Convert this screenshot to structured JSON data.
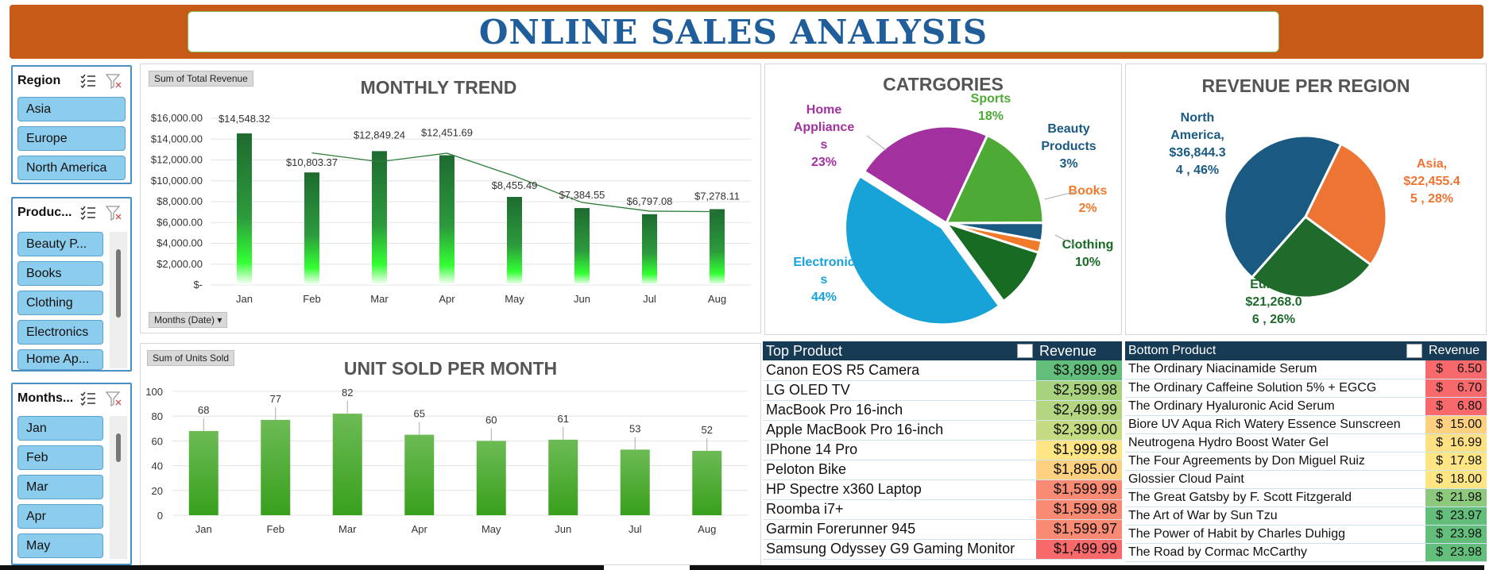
{
  "title": "ONLINE SALES ANALYSIS",
  "colors": {
    "banner": "#c65a16",
    "title_text": "#1f5d9b",
    "slicer_item": "#8cccec",
    "table_header": "#173a55"
  },
  "slicers": {
    "region": {
      "title": "Region",
      "items": [
        "Asia",
        "Europe",
        "North America"
      ]
    },
    "product": {
      "title": "Produc...",
      "items": [
        "Beauty P...",
        "Books",
        "Clothing",
        "Electronics",
        "Home Ap..."
      ]
    },
    "months": {
      "title": "Months...",
      "items": [
        "Jan",
        "Feb",
        "Mar",
        "Apr",
        "May"
      ]
    },
    "icons": {
      "multiselect": "multi-select-icon",
      "clear_filter": "clear-filter-icon"
    }
  },
  "chart_data": [
    {
      "type": "bar",
      "title": "MONTHLY TREND",
      "field_button": "Sum of Total Revenue",
      "axis_field_button": "Months (Date)",
      "categories": [
        "Jan",
        "Feb",
        "Mar",
        "Apr",
        "May",
        "Jun",
        "Jul",
        "Aug"
      ],
      "values": [
        14548.32,
        10803.37,
        12849.24,
        12451.69,
        8455.49,
        7384.55,
        6797.08,
        7278.11
      ],
      "data_labels": [
        "$14,548.32",
        "$10,803.37",
        "$12,849.24",
        "$12,451.69",
        "$8,455.49",
        "$7,384.55",
        "$6,797.08",
        "$7,278.11"
      ],
      "ylim": [
        0,
        16000
      ],
      "y_ticks": [
        "$-",
        "$2,000.00",
        "$4,000.00",
        "$6,000.00",
        "$8,000.00",
        "$10,000.00",
        "$12,000.00",
        "$14,000.00",
        "$16,000.00"
      ],
      "trendline": "moving average",
      "grid": true,
      "bar_color": "#1e6b30",
      "bar_fade_color": "#33ff33"
    },
    {
      "type": "bar",
      "title": "UNIT SOLD PER MONTH",
      "field_button": "Sum of Units Sold",
      "categories": [
        "Jan",
        "Feb",
        "Mar",
        "Apr",
        "May",
        "Jun",
        "Jul",
        "Aug"
      ],
      "values": [
        68,
        77,
        82,
        65,
        60,
        61,
        53,
        52
      ],
      "ylim": [
        0,
        100
      ],
      "y_ticks": [
        "0",
        "20",
        "40",
        "60",
        "80",
        "100"
      ],
      "grid": true,
      "bar_color": "#4aaa3a"
    },
    {
      "type": "pie",
      "title": "CATRGORIES",
      "slices": [
        {
          "name": "Electronics",
          "label_lines": [
            "Electronic",
            "s"
          ],
          "pct_label": "44%",
          "value": 44,
          "color": "#17a2d8",
          "exploded": true
        },
        {
          "name": "Home Appliances",
          "label_lines": [
            "Home",
            "Appliance",
            "s"
          ],
          "pct_label": "23%",
          "value": 23,
          "color": "#a2309f"
        },
        {
          "name": "Sports",
          "label_lines": [
            "Sports"
          ],
          "pct_label": "18%",
          "value": 18,
          "color": "#4daa35"
        },
        {
          "name": "Beauty Products",
          "label_lines": [
            "Beauty",
            "Products"
          ],
          "pct_label": "3%",
          "value": 3,
          "color": "#1a5a82"
        },
        {
          "name": "Books",
          "label_lines": [
            "Books"
          ],
          "pct_label": "2%",
          "value": 2,
          "color": "#f0792a"
        },
        {
          "name": "Clothing",
          "label_lines": [
            "Clothing"
          ],
          "pct_label": "10%",
          "value": 10,
          "color": "#186b22"
        }
      ]
    },
    {
      "type": "pie",
      "title": "REVENUE PER REGION",
      "slices": [
        {
          "name": "North America",
          "label_lines": [
            "North",
            "America,",
            "$36,844.3",
            "4 , 46%"
          ],
          "value": 36844.34,
          "color": "#1a5a82"
        },
        {
          "name": "Asia",
          "label_lines": [
            "Asia,",
            "$22,455.4",
            "5 , 28%"
          ],
          "value": 22455.45,
          "color": "#ed7433"
        },
        {
          "name": "Europe",
          "label_lines": [
            "Europe,",
            "$21,268.0",
            "6 , 26%"
          ],
          "value": 21268.06,
          "color": "#1e6b2b"
        }
      ]
    }
  ],
  "top_products": {
    "header_product": "Top Product",
    "header_revenue": "Revenue",
    "rows": [
      {
        "product": "Canon EOS R5 Camera",
        "revenue": "$3,899.99",
        "color": "#63be7b"
      },
      {
        "product": "LG OLED TV",
        "revenue": "$2,599.98",
        "color": "#a9d27f"
      },
      {
        "product": "MacBook Pro 16-inch",
        "revenue": "$2,499.99",
        "color": "#b5d680"
      },
      {
        "product": "Apple MacBook Pro 16-inch",
        "revenue": "$2,399.00",
        "color": "#c4db81"
      },
      {
        "product": "IPhone 14 Pro",
        "revenue": "$1,999.98",
        "color": "#ffe583"
      },
      {
        "product": "Peloton Bike",
        "revenue": "$1,895.00",
        "color": "#fdd17f"
      },
      {
        "product": "HP Spectre x360 Laptop",
        "revenue": "$1,599.99",
        "color": "#f98b75"
      },
      {
        "product": "Roomba i7+",
        "revenue": "$1,599.98",
        "color": "#f98b75"
      },
      {
        "product": "Garmin Forerunner 945",
        "revenue": "$1,599.97",
        "color": "#f98b75"
      },
      {
        "product": "Samsung Odyssey G9 Gaming Monitor",
        "revenue": "$1,499.99",
        "color": "#f8696b"
      }
    ]
  },
  "bottom_products": {
    "header_product": "Bottom Product",
    "header_revenue": "Revenue",
    "rows": [
      {
        "product": "The Ordinary Niacinamide Serum",
        "revenue": "$    6.50",
        "color": "#f8696b"
      },
      {
        "product": "The Ordinary Caffeine Solution 5% + EGCG",
        "revenue": "$    6.70",
        "color": "#f8696b"
      },
      {
        "product": "The Ordinary Hyaluronic Acid Serum",
        "revenue": "$    6.80",
        "color": "#f8696b"
      },
      {
        "product": "Biore UV Aqua Rich Watery Essence Sunscreen",
        "revenue": "$  15.00",
        "color": "#fdd17f"
      },
      {
        "product": "Neutrogena Hydro Boost Water Gel",
        "revenue": "$  16.99",
        "color": "#ffe083"
      },
      {
        "product": "The Four Agreements by Don Miguel Ruiz",
        "revenue": "$  17.98",
        "color": "#ffe583"
      },
      {
        "product": "Glossier Cloud Paint",
        "revenue": "$  18.00",
        "color": "#ffe583"
      },
      {
        "product": "The Great Gatsby by F. Scott Fitzgerald",
        "revenue": "$  21.98",
        "color": "#8cc97d"
      },
      {
        "product": "The Art of War by Sun Tzu",
        "revenue": "$  23.97",
        "color": "#63be7b"
      },
      {
        "product": "The Power of Habit by Charles Duhigg",
        "revenue": "$  23.98",
        "color": "#63be7b"
      },
      {
        "product": "The Road by Cormac McCarthy",
        "revenue": "$  23.98",
        "color": "#63be7b"
      }
    ]
  }
}
